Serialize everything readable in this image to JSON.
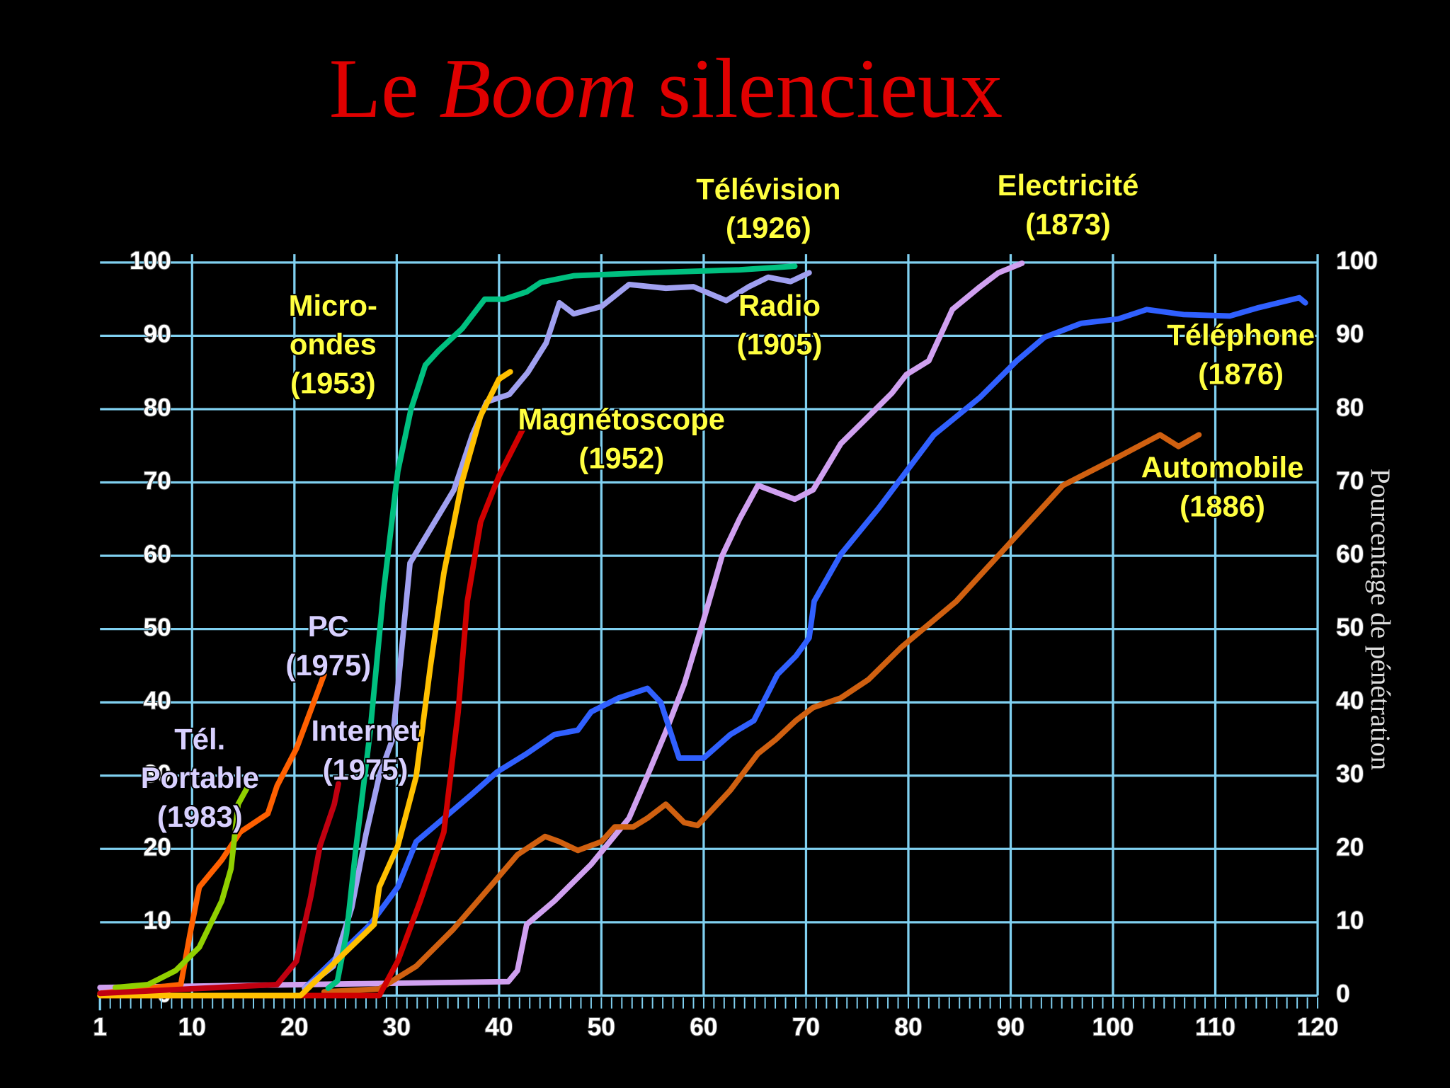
{
  "chart_data": {
    "type": "line",
    "title": {
      "before": "Le",
      "emphasis": "Boom",
      "after": "silencieux"
    },
    "y2_label": "Pourcentage de pénétration",
    "xlim": [
      1,
      120
    ],
    "xticks": [
      1,
      10,
      20,
      30,
      40,
      50,
      60,
      70,
      80,
      90,
      100,
      110,
      120
    ],
    "ylim": [
      0,
      100
    ],
    "yticks": [
      0,
      10,
      20,
      30,
      40,
      50,
      60,
      70,
      80,
      90,
      100
    ],
    "y2lim": [
      0,
      100
    ],
    "y2ticks": [
      0,
      10,
      20,
      30,
      40,
      50,
      60,
      70,
      80,
      90,
      100
    ],
    "grid": true,
    "grid_color": "#80d0f0",
    "series": [
      {
        "label_lines": [
          "Electricité",
          "(1873)"
        ],
        "label_color": "#ffff40",
        "color": "#d0a0f0",
        "x": [
          1,
          40.9,
          41.8,
          42.7,
          45.4,
          49,
          52.7,
          54.5,
          56.3,
          58.1,
          60,
          61.8,
          63.5,
          65.3,
          68.9,
          70.7,
          73.4,
          76.1,
          78.4,
          79.8,
          82,
          84.3,
          87,
          88.8,
          91.1
        ],
        "values": [
          1.1,
          1.9,
          3.4,
          9.7,
          12.9,
          17.9,
          24.2,
          30,
          36,
          42.5,
          51.3,
          60,
          65,
          69.6,
          67.7,
          69,
          75.3,
          79,
          82.2,
          84.7,
          86.6,
          93.6,
          96.7,
          98.6,
          99.9
        ]
      },
      {
        "label_lines": [
          "Téléphone",
          "(1876)"
        ],
        "label_color": "#ffff40",
        "color": "#3060ff",
        "x": [
          21,
          27.4,
          30.1,
          31.9,
          34.6,
          37.3,
          39.8,
          42.7,
          45.4,
          47.7,
          49,
          51.7,
          54.5,
          55.8,
          57.6,
          60,
          62.6,
          64.9,
          67.2,
          69,
          70.3,
          70.8,
          73.4,
          77.1,
          82.5,
          87,
          90.6,
          93.3,
          96.9,
          100.5,
          103.3,
          106.9,
          111.4,
          114.1,
          118.2,
          118.8
        ],
        "values": [
          1,
          9.7,
          14.8,
          21,
          24.2,
          27.4,
          30.5,
          33,
          35.6,
          36.2,
          38.7,
          40.6,
          41.9,
          40,
          32.4,
          32.4,
          35.6,
          37.5,
          43.8,
          46.3,
          48.8,
          53.8,
          60.2,
          66.5,
          76.5,
          81.6,
          86.6,
          89.8,
          91.7,
          92.3,
          93.6,
          92.9,
          92.7,
          93.8,
          95.2,
          94.5
        ]
      },
      {
        "label_lines": [
          "Automobile",
          "(1886)"
        ],
        "label_color": "#ffff40",
        "color": "#d06010",
        "x": [
          22.9,
          28.3,
          31.9,
          35.5,
          39.1,
          41.8,
          44.5,
          45.9,
          47.7,
          50,
          51.3,
          53.1,
          54.5,
          56.3,
          58.1,
          59.4,
          62.6,
          65.3,
          67.1,
          69,
          70.7,
          73.4,
          76.1,
          79.3,
          84.7,
          89.7,
          95.1,
          99.6,
          104.6,
          106.4,
          108.4
        ],
        "values": [
          0.5,
          0.9,
          4,
          9,
          14.8,
          19.2,
          21.7,
          21,
          19.8,
          21,
          23,
          23,
          24.2,
          26.1,
          23.6,
          23.2,
          28,
          33,
          35,
          37.5,
          39.3,
          40.6,
          43.1,
          47.5,
          53.8,
          61.4,
          69.6,
          72.8,
          76.5,
          74.9,
          76.5
        ]
      },
      {
        "label_lines": [
          "Radio",
          "(1905)"
        ],
        "label_color": "#ffff40",
        "color": "#a0a0f0",
        "x": [
          21,
          23.8,
          25.6,
          27,
          28.3,
          29.6,
          30.5,
          31.3,
          32.8,
          35.6,
          37.4,
          38.8,
          41,
          42.8,
          44.6,
          45.9,
          47.3,
          50,
          52.7,
          56.3,
          59,
          62.2,
          64.4,
          66.3,
          68.5,
          70.3
        ],
        "values": [
          1,
          4,
          12,
          22,
          30,
          35,
          47.5,
          59,
          62.5,
          69,
          76.5,
          81,
          82,
          85,
          89,
          94.5,
          93,
          94,
          97,
          96.5,
          96.7,
          94.8,
          96.7,
          98,
          97.4,
          98.6
        ]
      },
      {
        "label_lines": [
          "Télévision",
          "(1926)"
        ],
        "label_color": "#ffff40",
        "color": "#00c080",
        "x": [
          23.3,
          24.2,
          25.1,
          26,
          27.4,
          28.7,
          30.1,
          31.4,
          32.8,
          34.1,
          36.4,
          38.6,
          40.5,
          42.7,
          44.1,
          47.3,
          54.5,
          63.5,
          68.9
        ],
        "values": [
          1,
          2,
          8.5,
          20,
          36,
          55,
          71.5,
          80,
          86,
          88,
          91,
          95,
          95,
          96,
          97.3,
          98.2,
          98.6,
          99,
          99.5
        ]
      },
      {
        "label_lines": [
          "Magnétoscope",
          "(1952)"
        ],
        "label_color": "#ffff40",
        "color": "#d00000",
        "x": [
          1,
          28.3,
          30.1,
          32.3,
          34.6,
          36,
          36.9,
          38.2,
          40,
          42.3
        ],
        "values": [
          0,
          0,
          4.7,
          12.9,
          22.3,
          38.7,
          53.8,
          64.6,
          70.9,
          77.2
        ]
      },
      {
        "label_lines": [
          "Micro-",
          "ondes",
          "(1953)"
        ],
        "label_color": "#ffff40",
        "color": "#ffc000",
        "x": [
          1,
          20.6,
          27.8,
          28.3,
          30.1,
          31.9,
          33.3,
          34.6,
          36.4,
          38.2,
          40,
          41.1
        ],
        "values": [
          0,
          0,
          9.7,
          14.8,
          20.4,
          29.9,
          45,
          57.6,
          70.2,
          79.1,
          84.1,
          85.1
        ]
      },
      {
        "label_lines": [
          "PC",
          "(1975)"
        ],
        "label_color": "#d8d0ff",
        "color": "#ff6000",
        "x": [
          1,
          8.9,
          9.8,
          10.7,
          12.9,
          14.7,
          17.4,
          18.3,
          20.2,
          22.9
        ],
        "values": [
          0.3,
          1.5,
          8.4,
          14.8,
          18.5,
          22.3,
          24.8,
          28.6,
          33.7,
          43.8
        ]
      },
      {
        "label_lines": [
          "Tél.",
          "Portable",
          "(1983)"
        ],
        "label_color": "#d8d0ff",
        "color": "#90d000",
        "x": [
          2.5,
          5.7,
          8.4,
          10.7,
          12.9,
          13.8,
          14.5,
          15.4
        ],
        "values": [
          1.1,
          1.5,
          3.4,
          6.6,
          12.9,
          17.3,
          26.1,
          28.4
        ]
      },
      {
        "label_lines": [
          "Internet",
          "(1975)"
        ],
        "label_color": "#d8d0ff",
        "color": "#c00010",
        "x": [
          1,
          18.3,
          20.2,
          21.6,
          22.5,
          23.9,
          24.3
        ],
        "values": [
          0.3,
          1.5,
          4.7,
          13.5,
          20.4,
          26.1,
          28.9
        ]
      }
    ]
  }
}
